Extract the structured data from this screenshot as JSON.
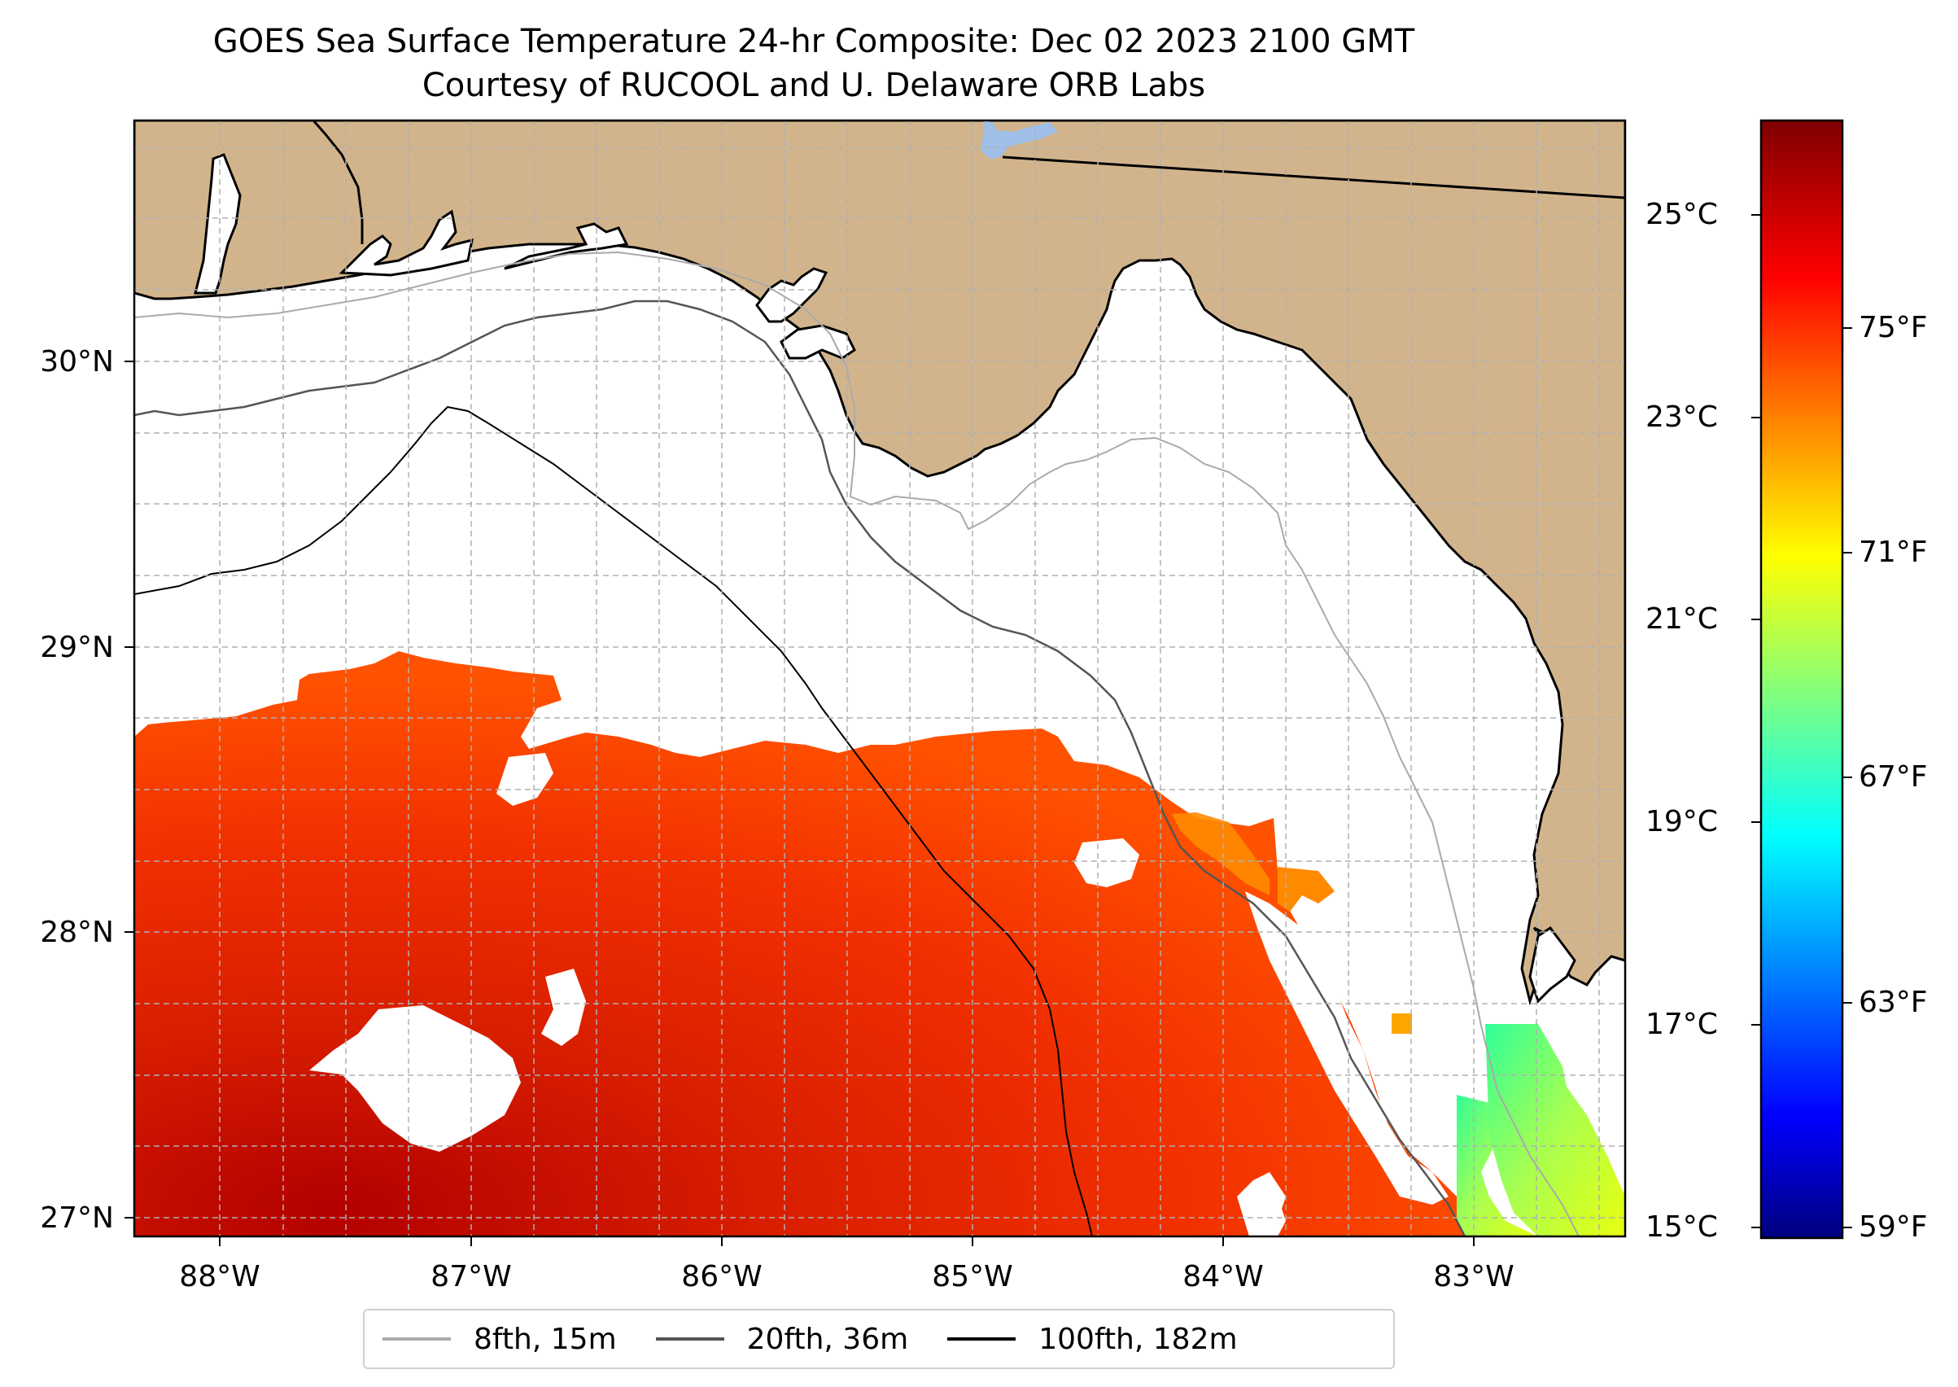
{
  "title": {
    "line1": "GOES Sea Surface Temperature 24-hr Composite: Dec 02 2023 2100 GMT",
    "line2": "Courtesy of RUCOOL and U. Delaware ORB Labs"
  },
  "map": {
    "lon_range": [
      -88.33,
      -82.38
    ],
    "lat_range": [
      26.93,
      30.85
    ],
    "lon_ticks": [
      "88°W",
      "87°W",
      "86°W",
      "85°W",
      "84°W",
      "83°W"
    ],
    "lat_ticks": [
      "27°N",
      "28°N",
      "29°N",
      "30°N"
    ],
    "land_color": "#d2b48c",
    "no_data_color": "#ffffff",
    "lake_color": "#9fbfe8",
    "gridlines": true
  },
  "legend": {
    "items": [
      {
        "label": "8fth, 15m",
        "color": "#aaaaaa"
      },
      {
        "label": "20fth, 36m",
        "color": "#555555"
      },
      {
        "label": "100fth, 182m",
        "color": "#000000"
      }
    ],
    "placement": "bottom-center"
  },
  "colorbar": {
    "colormap": "jet",
    "celsius_ticks": [
      "15°C",
      "17°C",
      "19°C",
      "21°C",
      "23°C",
      "25°C"
    ],
    "fahrenheit_ticks": [
      "59°F",
      "63°F",
      "67°F",
      "71°F",
      "75°F"
    ],
    "range_celsius": [
      15,
      26
    ]
  }
}
